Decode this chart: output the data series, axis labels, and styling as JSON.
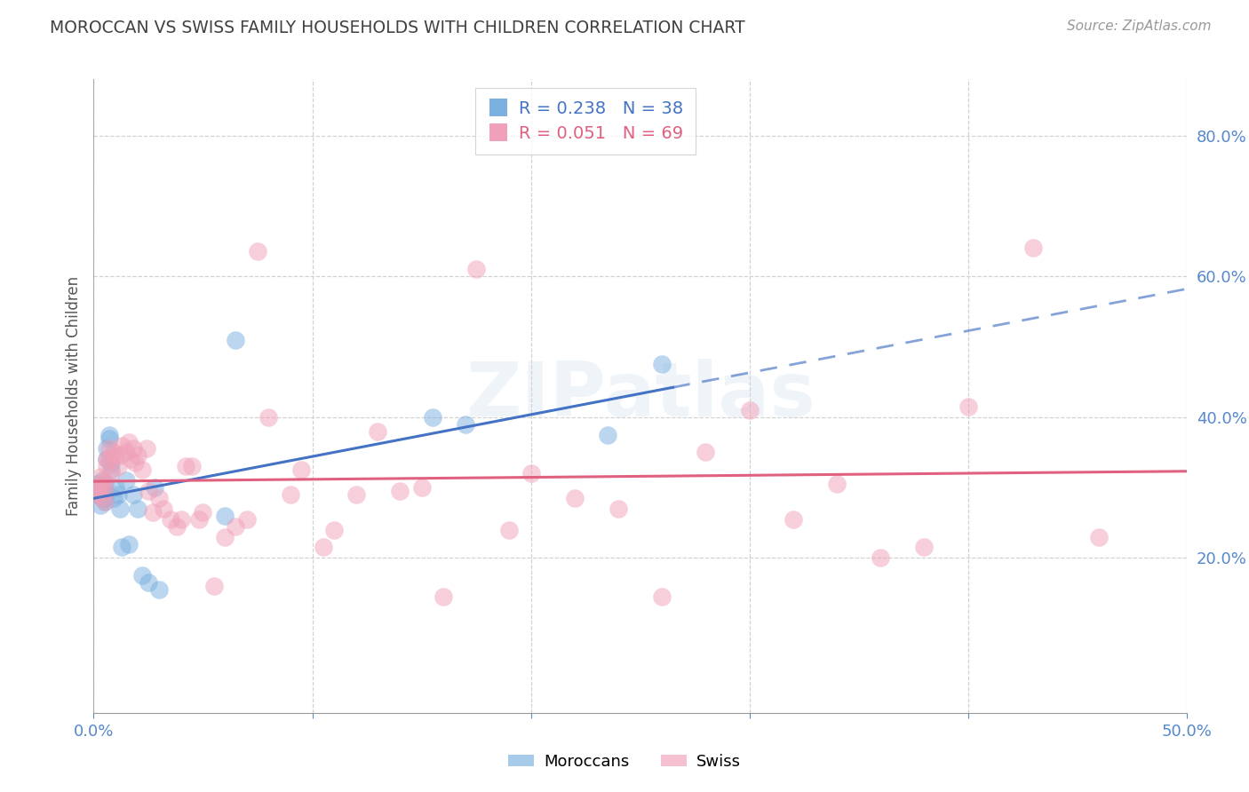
{
  "title": "MOROCCAN VS SWISS FAMILY HOUSEHOLDS WITH CHILDREN CORRELATION CHART",
  "source": "Source: ZipAtlas.com",
  "ylabel": "Family Households with Children",
  "xmin": 0.0,
  "xmax": 0.5,
  "ymin": -0.02,
  "ymax": 0.88,
  "yticks": [
    0.2,
    0.4,
    0.6,
    0.8
  ],
  "ytick_labels": [
    "20.0%",
    "40.0%",
    "60.0%",
    "80.0%"
  ],
  "xticks": [
    0.0,
    0.1,
    0.2,
    0.3,
    0.4,
    0.5
  ],
  "xtick_labels": [
    "0.0%",
    "",
    "",
    "",
    "",
    "50.0%"
  ],
  "moroccan_x": [
    0.001,
    0.002,
    0.002,
    0.003,
    0.003,
    0.003,
    0.004,
    0.004,
    0.004,
    0.005,
    0.005,
    0.005,
    0.005,
    0.006,
    0.006,
    0.007,
    0.007,
    0.008,
    0.008,
    0.009,
    0.01,
    0.011,
    0.012,
    0.013,
    0.015,
    0.016,
    0.018,
    0.02,
    0.022,
    0.025,
    0.028,
    0.03,
    0.06,
    0.065,
    0.155,
    0.17,
    0.235,
    0.26
  ],
  "moroccan_y": [
    0.295,
    0.29,
    0.305,
    0.275,
    0.29,
    0.3,
    0.295,
    0.285,
    0.31,
    0.285,
    0.295,
    0.28,
    0.305,
    0.34,
    0.355,
    0.37,
    0.375,
    0.335,
    0.325,
    0.285,
    0.3,
    0.29,
    0.27,
    0.215,
    0.31,
    0.22,
    0.29,
    0.27,
    0.175,
    0.165,
    0.3,
    0.155,
    0.26,
    0.51,
    0.4,
    0.39,
    0.375,
    0.475
  ],
  "swiss_x": [
    0.001,
    0.002,
    0.002,
    0.003,
    0.003,
    0.004,
    0.004,
    0.005,
    0.005,
    0.005,
    0.006,
    0.006,
    0.007,
    0.007,
    0.008,
    0.009,
    0.01,
    0.011,
    0.012,
    0.013,
    0.015,
    0.016,
    0.017,
    0.018,
    0.019,
    0.02,
    0.022,
    0.024,
    0.025,
    0.027,
    0.03,
    0.032,
    0.035,
    0.038,
    0.04,
    0.042,
    0.045,
    0.048,
    0.05,
    0.055,
    0.06,
    0.065,
    0.07,
    0.075,
    0.08,
    0.09,
    0.095,
    0.105,
    0.11,
    0.12,
    0.13,
    0.14,
    0.15,
    0.16,
    0.175,
    0.19,
    0.2,
    0.22,
    0.24,
    0.26,
    0.28,
    0.3,
    0.32,
    0.34,
    0.36,
    0.38,
    0.4,
    0.43,
    0.46
  ],
  "swiss_y": [
    0.295,
    0.295,
    0.29,
    0.305,
    0.315,
    0.285,
    0.3,
    0.295,
    0.28,
    0.31,
    0.34,
    0.33,
    0.34,
    0.355,
    0.32,
    0.35,
    0.345,
    0.33,
    0.345,
    0.36,
    0.35,
    0.365,
    0.34,
    0.355,
    0.335,
    0.345,
    0.325,
    0.355,
    0.295,
    0.265,
    0.285,
    0.27,
    0.255,
    0.245,
    0.255,
    0.33,
    0.33,
    0.255,
    0.265,
    0.16,
    0.23,
    0.245,
    0.255,
    0.635,
    0.4,
    0.29,
    0.325,
    0.215,
    0.24,
    0.29,
    0.38,
    0.295,
    0.3,
    0.145,
    0.61,
    0.24,
    0.32,
    0.285,
    0.27,
    0.145,
    0.35,
    0.41,
    0.255,
    0.305,
    0.2,
    0.215,
    0.415,
    0.64,
    0.23
  ],
  "moroccan_dot_color": "#7aafe0",
  "swiss_dot_color": "#f0a0b8",
  "moroccan_line_color": "#4472c4",
  "swiss_line_color": "#e06080",
  "background_color": "#ffffff",
  "grid_color": "#cccccc",
  "title_color": "#404040",
  "axis_label_color": "#5588cc",
  "watermark_text": "ZIPatlas",
  "legend1_label": "R = 0.238   N = 38",
  "legend2_label": "R = 0.051   N = 69",
  "bottom_legend1": "Moroccans",
  "bottom_legend2": "Swiss"
}
